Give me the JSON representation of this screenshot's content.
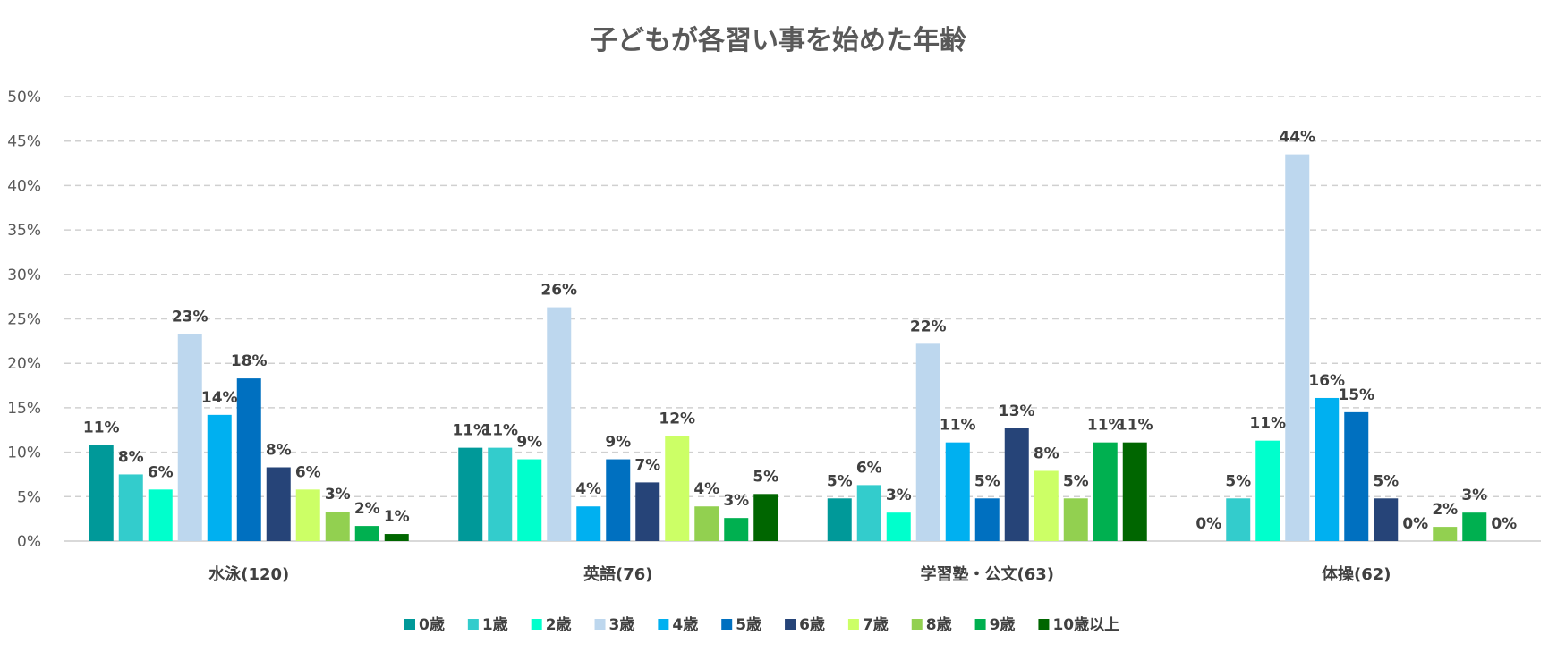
{
  "chart_data": {
    "type": "bar",
    "title": "子どもが各習い事を始めた年齢",
    "xlabel": "",
    "ylabel": "",
    "ylim": [
      0,
      50
    ],
    "y_ticks": [
      "0%",
      "5%",
      "10%",
      "15%",
      "20%",
      "25%",
      "30%",
      "35%",
      "40%",
      "45%",
      "50%"
    ],
    "grid": "dashed horizontal",
    "legend_position": "bottom",
    "categories": [
      "水泳(120)",
      "英語(76)",
      "学習塾・公文(63)",
      "体操(62)"
    ],
    "series": [
      {
        "name": "0歳",
        "color": "#009999",
        "values": [
          10.8,
          10.5,
          4.8,
          0
        ],
        "labels": [
          "11%",
          "11%",
          "5%",
          "0%"
        ]
      },
      {
        "name": "1歳",
        "color": "#33CCCC",
        "values": [
          7.5,
          10.5,
          6.3,
          4.8
        ],
        "labels": [
          "8%",
          "11%",
          "6%",
          "5%"
        ]
      },
      {
        "name": "2歳",
        "color": "#00FFCC",
        "values": [
          5.8,
          9.2,
          3.2,
          11.3
        ],
        "labels": [
          "6%",
          "9%",
          "3%",
          "11%"
        ]
      },
      {
        "name": "3歳",
        "color": "#BDD7EE",
        "values": [
          23.3,
          26.3,
          22.2,
          43.5
        ],
        "labels": [
          "23%",
          "26%",
          "22%",
          "44%"
        ]
      },
      {
        "name": "4歳",
        "color": "#00B0F0",
        "values": [
          14.2,
          3.9,
          11.1,
          16.1
        ],
        "labels": [
          "14%",
          "4%",
          "11%",
          "16%"
        ]
      },
      {
        "name": "5歳",
        "color": "#0070C0",
        "values": [
          18.3,
          9.2,
          4.8,
          14.5
        ],
        "labels": [
          "18%",
          "9%",
          "5%",
          "15%"
        ]
      },
      {
        "name": "6歳",
        "color": "#264478",
        "values": [
          8.3,
          6.6,
          12.7,
          4.8
        ],
        "labels": [
          "8%",
          "7%",
          "13%",
          "5%"
        ]
      },
      {
        "name": "7歳",
        "color": "#CCFF66",
        "values": [
          5.8,
          11.8,
          7.9,
          0
        ],
        "labels": [
          "6%",
          "12%",
          "8%",
          "0%"
        ]
      },
      {
        "name": "8歳",
        "color": "#92D050",
        "values": [
          3.3,
          3.9,
          4.8,
          1.6
        ],
        "labels": [
          "3%",
          "4%",
          "5%",
          "2%"
        ]
      },
      {
        "name": "9歳",
        "color": "#00B050",
        "values": [
          1.7,
          2.6,
          11.1,
          3.2
        ],
        "labels": [
          "2%",
          "3%",
          "11%",
          "3%"
        ]
      },
      {
        "name": "10歳以上",
        "color": "#006600",
        "values": [
          0.8,
          5.3,
          11.1,
          0
        ],
        "labels": [
          "1%",
          "5%",
          "11%",
          "0%"
        ]
      }
    ]
  }
}
